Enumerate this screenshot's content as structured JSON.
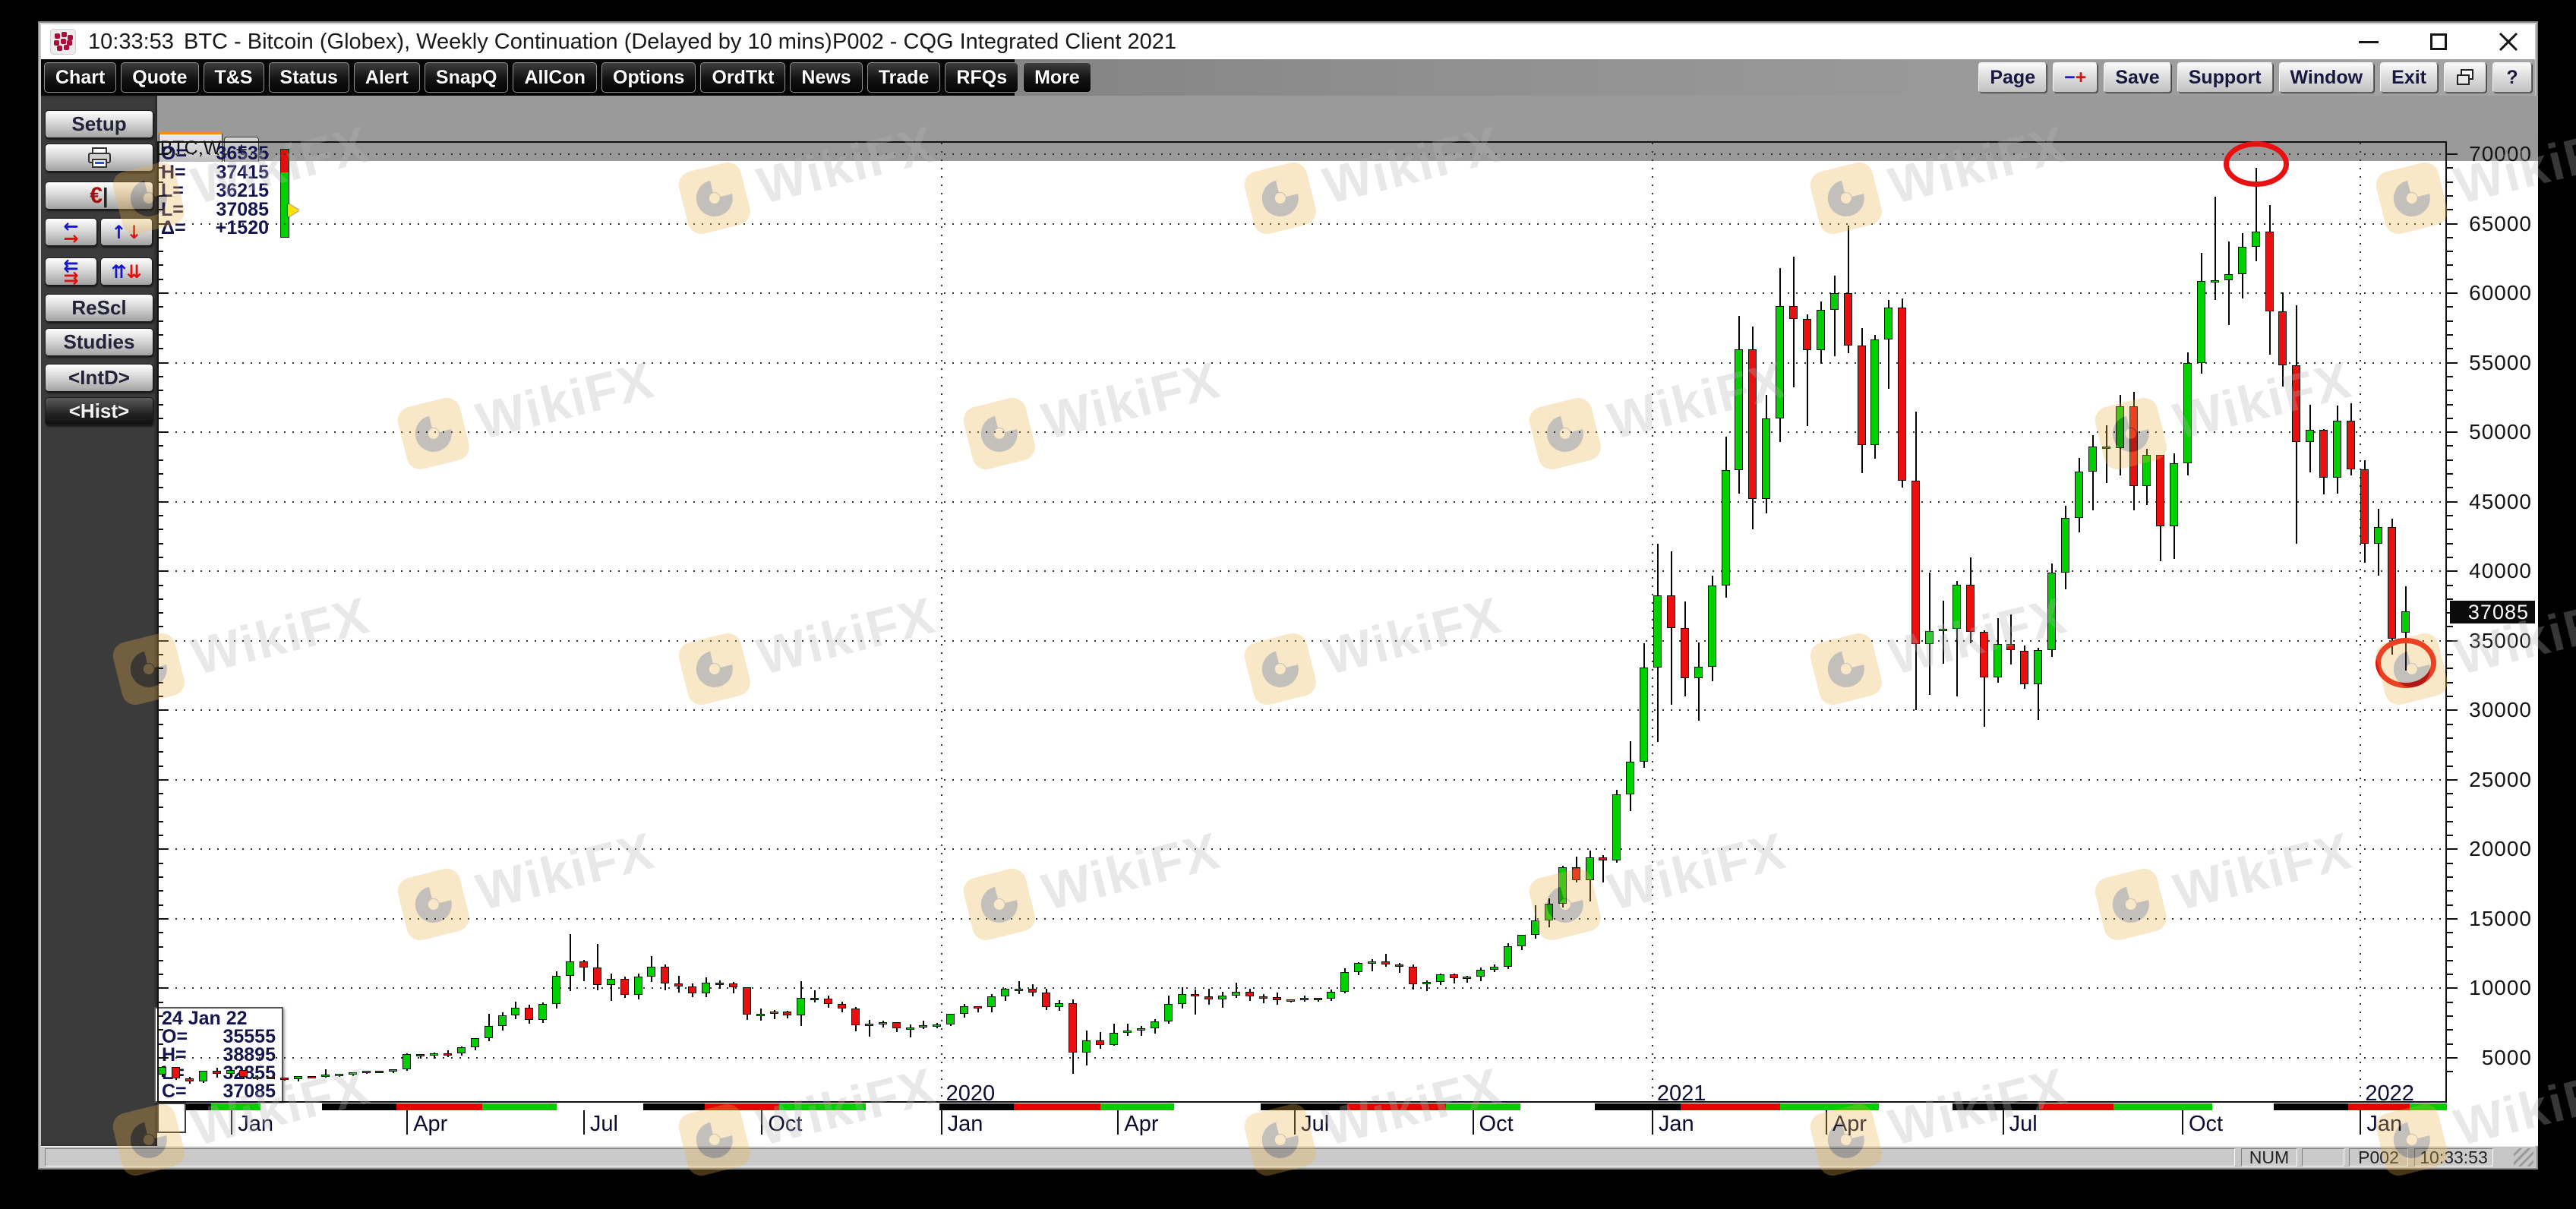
{
  "titlebar": {
    "time": "10:33:53",
    "title": "BTC - Bitcoin (Globex), Weekly Continuation (Delayed by 10 mins)",
    "app": "P002 - CQG Integrated Client 2021"
  },
  "menu": {
    "items": [
      "Chart",
      "Quote",
      "T&S",
      "Status",
      "Alert",
      "SnapQ",
      "AllCon",
      "Options",
      "OrdTkt",
      "News",
      "Trade",
      "RFQs",
      "More"
    ],
    "right": [
      {
        "id": "page-button",
        "label": "Page"
      },
      {
        "id": "scale-button",
        "label": "-+",
        "minus": "−",
        "plus": "+"
      },
      {
        "id": "save-button",
        "label": "Save"
      },
      {
        "id": "support-button",
        "label": "Support"
      },
      {
        "id": "window-button",
        "label": "Window"
      },
      {
        "id": "exit-button",
        "label": "Exit"
      },
      {
        "id": "cascade-button",
        "label": "cascade-windows-icon"
      },
      {
        "id": "help-button",
        "label": "?"
      }
    ]
  },
  "sidebar": {
    "buttons": [
      {
        "id": "setup",
        "label": "Setup"
      },
      {
        "id": "print",
        "icon": "printer-icon"
      },
      {
        "id": "euro",
        "icon": "euro-icon",
        "euro": "€",
        "bar": "|"
      },
      {
        "id": "swap-horizontal",
        "icon": "arrows-horizontal-icon",
        "g1": "←",
        "g2": "→",
        "layout": "col"
      },
      {
        "id": "swap-vertical",
        "icon": "arrows-vertical-icon",
        "g1": "↑",
        "g2": "↓",
        "layout": "row"
      },
      {
        "id": "swap-horizontal-double",
        "icon": "arrows-horizontal-double-icon",
        "g1": "⇇",
        "g2": "⇉",
        "layout": "col"
      },
      {
        "id": "swap-vertical-double",
        "icon": "arrows-vertical-double-icon",
        "g1": "⇈",
        "g2": "⇊",
        "layout": "row"
      },
      {
        "id": "rescl",
        "label": "ReScl"
      },
      {
        "id": "studies",
        "label": "Studies"
      },
      {
        "id": "intd",
        "label": "<IntD>"
      },
      {
        "id": "hist",
        "label": "<Hist>",
        "pressed": true
      }
    ]
  },
  "tab": {
    "label": "BTC,W",
    "add": "+"
  },
  "quote_panel": {
    "rows": [
      {
        "label": "O=",
        "value": "36535"
      },
      {
        "label": "H=",
        "value": "37415"
      },
      {
        "label": "L=",
        "value": "36215"
      },
      {
        "label": "L=",
        "value": "37085"
      },
      {
        "label": "Δ=",
        "value": "+1520"
      }
    ]
  },
  "info_box": {
    "date": "24 Jan 22",
    "rows": [
      {
        "label": "O=",
        "value": "35555"
      },
      {
        "label": "H=",
        "value": "38895"
      },
      {
        "label": "L=",
        "value": "32855"
      },
      {
        "label": "C=",
        "value": "37085"
      }
    ]
  },
  "status_bar": {
    "num": "NUM",
    "page": "P002",
    "time": "10:33:53"
  },
  "watermark": {
    "text": "WikiFX"
  },
  "colors": {
    "up": "#00cf00",
    "down": "#ea1010",
    "accent": "#ef9010",
    "annotation": "#e81010",
    "ribbon": {
      "g": "#00cc00",
      "r": "#e80000",
      "w": "#ffffff",
      "k": "#000000"
    }
  },
  "chart_data": {
    "type": "candlestick",
    "title": "BTC - Bitcoin (Globex), Weekly Continuation",
    "series_name": "BTC,W",
    "interval": "Weekly",
    "price_ticks": [
      70000,
      65000,
      60000,
      55000,
      50000,
      45000,
      40000,
      35000,
      30000,
      25000,
      20000,
      15000,
      10000,
      5000
    ],
    "current_price": 37085,
    "current_price_label": "37085",
    "months": [
      {
        "label": "Jan",
        "week": 5.1
      },
      {
        "label": "Apr",
        "week": 18.0
      },
      {
        "label": "Jul",
        "week": 31.0
      },
      {
        "label": "Oct",
        "week": 44.1
      },
      {
        "label": "Jan",
        "week": 57.3
      },
      {
        "label": "Apr",
        "week": 70.3
      },
      {
        "label": "Jul",
        "week": 83.3
      },
      {
        "label": "Oct",
        "week": 96.4
      },
      {
        "label": "Jan",
        "week": 109.6
      },
      {
        "label": "Apr",
        "week": 122.4
      },
      {
        "label": "Jul",
        "week": 135.4
      },
      {
        "label": "Oct",
        "week": 148.6
      },
      {
        "label": "Jan",
        "week": 161.7
      }
    ],
    "years": [
      {
        "label": "2020",
        "week": 57.3
      },
      {
        "label": "2021",
        "week": 109.6
      },
      {
        "label": "2022",
        "week": 161.7
      }
    ],
    "annotations": [
      {
        "shape": "ellipse",
        "week": 154,
        "price": 69300,
        "w": 86,
        "h": 60
      },
      {
        "shape": "ellipse",
        "week": 165,
        "price": 33400,
        "w": 80,
        "h": 66
      }
    ],
    "ribbon": [
      [
        "k",
        2
      ],
      [
        "g",
        4
      ],
      [
        "w",
        5
      ],
      [
        "k",
        6
      ],
      [
        "r",
        7
      ],
      [
        "g",
        6
      ],
      [
        "w",
        7
      ],
      [
        "k",
        5
      ],
      [
        "r",
        6
      ],
      [
        "g",
        7
      ],
      [
        "w",
        6
      ],
      [
        "k",
        6
      ],
      [
        "r",
        7
      ],
      [
        "g",
        6
      ],
      [
        "w",
        7
      ],
      [
        "k",
        7
      ],
      [
        "r",
        8
      ],
      [
        "g",
        6
      ],
      [
        "w",
        6
      ],
      [
        "k",
        7
      ],
      [
        "r",
        8
      ],
      [
        "g",
        8
      ],
      [
        "w",
        6
      ],
      [
        "k",
        7
      ],
      [
        "r",
        6
      ],
      [
        "g",
        8
      ],
      [
        "w",
        5
      ],
      [
        "k",
        6
      ],
      [
        "r",
        5
      ],
      [
        "g",
        3
      ]
    ],
    "weekly_ohlc": [
      [
        3750,
        4420,
        3640,
        4280
      ],
      [
        4280,
        4350,
        3400,
        3470
      ],
      [
        3470,
        3650,
        3150,
        3230
      ],
      [
        3230,
        4050,
        3180,
        3990
      ],
      [
        3990,
        4280,
        3570,
        3780
      ],
      [
        3780,
        4110,
        3630,
        4070
      ],
      [
        4070,
        4110,
        3460,
        3560
      ],
      [
        3560,
        3740,
        3430,
        3600
      ],
      [
        3600,
        3660,
        3480,
        3550
      ],
      [
        3550,
        3600,
        3350,
        3420
      ],
      [
        3420,
        3680,
        3330,
        3660
      ],
      [
        3660,
        3710,
        3550,
        3620
      ],
      [
        3620,
        4190,
        3590,
        3760
      ],
      [
        3760,
        3860,
        3640,
        3820
      ],
      [
        3820,
        3950,
        3700,
        3920
      ],
      [
        3920,
        4040,
        3830,
        4010
      ],
      [
        4010,
        4060,
        3890,
        3980
      ],
      [
        3980,
        4140,
        3930,
        4100
      ],
      [
        4100,
        5340,
        4060,
        5200
      ],
      [
        5200,
        5290,
        4930,
        5160
      ],
      [
        5160,
        5390,
        4970,
        5300
      ],
      [
        5300,
        5560,
        5050,
        5250
      ],
      [
        5250,
        5810,
        5160,
        5700
      ],
      [
        5700,
        6430,
        5550,
        6350
      ],
      [
        6350,
        8150,
        6180,
        7250
      ],
      [
        7250,
        8280,
        6950,
        8000
      ],
      [
        8000,
        9060,
        7800,
        8550
      ],
      [
        8550,
        8850,
        7450,
        7700
      ],
      [
        7700,
        9000,
        7510,
        8800
      ],
      [
        8800,
        11250,
        8540,
        10850
      ],
      [
        10850,
        13880,
        9800,
        11900
      ],
      [
        11900,
        12060,
        10500,
        11450
      ],
      [
        11450,
        13200,
        9870,
        10200
      ],
      [
        10200,
        11070,
        9100,
        10600
      ],
      [
        10600,
        10840,
        9330,
        9500
      ],
      [
        9500,
        11040,
        9230,
        10800
      ],
      [
        10800,
        12320,
        10450,
        11500
      ],
      [
        11500,
        11700,
        9880,
        10300
      ],
      [
        10300,
        10920,
        9720,
        10100
      ],
      [
        10100,
        10380,
        9350,
        9600
      ],
      [
        9600,
        10800,
        9370,
        10350
      ],
      [
        10350,
        10580,
        9950,
        10300
      ],
      [
        10300,
        10480,
        9620,
        10000
      ],
      [
        10000,
        10050,
        7750,
        8050
      ],
      [
        8050,
        8530,
        7680,
        8100
      ],
      [
        8100,
        8420,
        7780,
        8300
      ],
      [
        8300,
        8410,
        7820,
        8000
      ],
      [
        8000,
        10540,
        7300,
        9250
      ],
      [
        9250,
        9850,
        8960,
        9200
      ],
      [
        9200,
        9470,
        8620,
        8800
      ],
      [
        8800,
        9060,
        8250,
        8500
      ],
      [
        8500,
        8650,
        6900,
        7300
      ],
      [
        7300,
        7750,
        6530,
        7400
      ],
      [
        7400,
        7690,
        7210,
        7500
      ],
      [
        7500,
        7590,
        6870,
        7100
      ],
      [
        7100,
        7380,
        6450,
        7150
      ],
      [
        7150,
        7690,
        7060,
        7300
      ],
      [
        7300,
        7530,
        7110,
        7350
      ],
      [
        7350,
        8190,
        7290,
        8100
      ],
      [
        8100,
        8900,
        7880,
        8650
      ],
      [
        8650,
        8730,
        8270,
        8600
      ],
      [
        8600,
        9570,
        8280,
        9350
      ],
      [
        9350,
        10050,
        9110,
        9900
      ],
      [
        9900,
        10500,
        9610,
        9900
      ],
      [
        9900,
        10290,
        9420,
        9650
      ],
      [
        9650,
        9980,
        8420,
        8600
      ],
      [
        8600,
        9170,
        8410,
        8900
      ],
      [
        8900,
        9180,
        3850,
        5350
      ],
      [
        5350,
        6980,
        4450,
        6200
      ],
      [
        6200,
        6850,
        5680,
        5900
      ],
      [
        5900,
        7450,
        5850,
        6750
      ],
      [
        6750,
        7470,
        6560,
        6900
      ],
      [
        6900,
        7290,
        6580,
        7100
      ],
      [
        7100,
        7780,
        6770,
        7550
      ],
      [
        7550,
        9480,
        7480,
        8800
      ],
      [
        8800,
        10070,
        8530,
        9550
      ],
      [
        9550,
        9940,
        8100,
        9350
      ],
      [
        9350,
        9950,
        8810,
        9150
      ],
      [
        9150,
        9740,
        8620,
        9450
      ],
      [
        9450,
        10430,
        9340,
        9700
      ],
      [
        9700,
        9990,
        9080,
        9350
      ],
      [
        9350,
        9590,
        8910,
        9300
      ],
      [
        9300,
        9680,
        8830,
        9100
      ],
      [
        9100,
        9230,
        8960,
        9150
      ],
      [
        9150,
        9480,
        9020,
        9250
      ],
      [
        9250,
        9340,
        9050,
        9200
      ],
      [
        9200,
        9920,
        9110,
        9700
      ],
      [
        9700,
        11420,
        9660,
        11100
      ],
      [
        11100,
        11860,
        10960,
        11800
      ],
      [
        11800,
        12090,
        11250,
        11900
      ],
      [
        11900,
        12470,
        11530,
        11650
      ],
      [
        11650,
        11820,
        11130,
        11500
      ],
      [
        11500,
        11720,
        9900,
        10250
      ],
      [
        10250,
        10590,
        9830,
        10400
      ],
      [
        10400,
        11090,
        10220,
        10950
      ],
      [
        10950,
        11060,
        10330,
        10700
      ],
      [
        10700,
        10920,
        10390,
        10800
      ],
      [
        10800,
        11480,
        10540,
        11300
      ],
      [
        11300,
        11720,
        11170,
        11500
      ],
      [
        11500,
        13240,
        11390,
        13000
      ],
      [
        13000,
        13870,
        12750,
        13800
      ],
      [
        13800,
        15960,
        13560,
        14850
      ],
      [
        14850,
        16490,
        14370,
        16050
      ],
      [
        16050,
        18830,
        15810,
        18650
      ],
      [
        18650,
        19450,
        17620,
        17700
      ],
      [
        17700,
        19900,
        16250,
        19350
      ],
      [
        19350,
        19590,
        17600,
        19150
      ],
      [
        19150,
        24280,
        19050,
        23900
      ],
      [
        23900,
        27800,
        22750,
        26250
      ],
      [
        26250,
        34800,
        25850,
        33000
      ],
      [
        33000,
        41990,
        27700,
        38200
      ],
      [
        38200,
        41450,
        30400,
        35850
      ],
      [
        35850,
        37850,
        31000,
        32250
      ],
      [
        32250,
        34900,
        29250,
        33100
      ],
      [
        33100,
        39700,
        32100,
        38900
      ],
      [
        38900,
        49700,
        38080,
        47200
      ],
      [
        47200,
        58350,
        45600,
        55900
      ],
      [
        55900,
        57600,
        43000,
        45150
      ],
      [
        45150,
        52700,
        44150,
        50950
      ],
      [
        50950,
        61800,
        49300,
        59000
      ],
      [
        59000,
        62600,
        53250,
        58100
      ],
      [
        58100,
        58450,
        50450,
        55850
      ],
      [
        55850,
        59400,
        54900,
        58750
      ],
      [
        58750,
        61250,
        55450,
        59950
      ],
      [
        59950,
        64850,
        55700,
        56200
      ],
      [
        56200,
        57500,
        47050,
        49050
      ],
      [
        49050,
        57000,
        48100,
        56600
      ],
      [
        56600,
        59500,
        53100,
        58900
      ],
      [
        58900,
        59600,
        46000,
        46450
      ],
      [
        46450,
        51500,
        30000,
        34700
      ],
      [
        34700,
        39900,
        31100,
        35650
      ],
      [
        35650,
        37900,
        33350,
        35800
      ],
      [
        35800,
        39300,
        31000,
        39000
      ],
      [
        39000,
        41000,
        34800,
        35600
      ],
      [
        35600,
        35750,
        28800,
        32300
      ],
      [
        32300,
        36600,
        32000,
        34700
      ],
      [
        34700,
        36900,
        33300,
        34250
      ],
      [
        34250,
        34680,
        31550,
        31800
      ],
      [
        31800,
        34500,
        29300,
        34300
      ],
      [
        34300,
        40550,
        33850,
        39850
      ],
      [
        39850,
        44700,
        38700,
        43800
      ],
      [
        43800,
        48150,
        42800,
        47100
      ],
      [
        47100,
        49800,
        44400,
        48900
      ],
      [
        48900,
        50500,
        46350,
        48800
      ],
      [
        48800,
        52700,
        46900,
        51800
      ],
      [
        51800,
        52900,
        44400,
        46050
      ],
      [
        46050,
        48820,
        44750,
        48300
      ],
      [
        48300,
        48350,
        40700,
        43200
      ],
      [
        43200,
        48500,
        40900,
        47700
      ],
      [
        47700,
        55750,
        46900,
        54950
      ],
      [
        54950,
        62900,
        54200,
        60850
      ],
      [
        60850,
        66950,
        59500,
        60900
      ],
      [
        60900,
        63700,
        57700,
        61300
      ],
      [
        61300,
        64300,
        59600,
        63300
      ],
      [
        63300,
        69000,
        62300,
        64400
      ],
      [
        64400,
        66350,
        55600,
        58650
      ],
      [
        58650,
        60050,
        53300,
        54750
      ],
      [
        54750,
        59150,
        42000,
        49250
      ],
      [
        49250,
        51950,
        47100,
        50100
      ],
      [
        50100,
        50200,
        45550,
        46700
      ],
      [
        46700,
        51900,
        45600,
        50800
      ],
      [
        50800,
        52100,
        46900,
        47300
      ],
      [
        47300,
        47990,
        40600,
        41900
      ],
      [
        41900,
        44500,
        39700,
        43100
      ],
      [
        43100,
        43800,
        34000,
        35075
      ],
      [
        35555,
        38895,
        32855,
        37085
      ]
    ]
  }
}
